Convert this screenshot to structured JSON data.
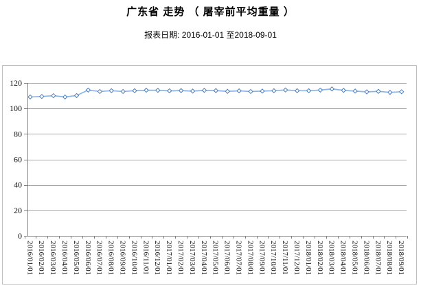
{
  "header": {
    "title": "广东省 走势 （ 屠宰前平均重量 ）",
    "subtitle": "报表日期: 2016-01-01 至2018-09-01"
  },
  "colors": {
    "series_line": "#8EB4E3",
    "marker_stroke": "#4A7EBB",
    "marker_fill": "#FFFFFF",
    "gridline": "#A6A6A6",
    "axis": "#808080",
    "outer_border": "#BFBFBF",
    "label_text": "#111111"
  },
  "chart_data": {
    "type": "line",
    "title": "广东省 走势 （ 屠宰前平均重量 ）",
    "subtitle": "报表日期: 2016-01-01 至2018-09-01",
    "xlabel": "",
    "ylabel": "",
    "legend": "none",
    "grid": "horizontal",
    "marker": "hollow-diamond",
    "ylim": [
      0,
      120
    ],
    "yticks": [
      0,
      20,
      40,
      60,
      80,
      100,
      120
    ],
    "categories": [
      "2016/01/01",
      "2016/02/01",
      "2016/03/01",
      "2016/04/01",
      "2016/05/01",
      "2016/06/01",
      "2016/07/01",
      "2016/08/01",
      "2016/09/01",
      "2016/10/01",
      "2016/11/01",
      "2016/12/01",
      "2017/01/01",
      "2017/02/01",
      "2017/03/01",
      "2017/04/01",
      "2017/05/01",
      "2017/06/01",
      "2017/07/01",
      "2017/08/01",
      "2017/09/01",
      "2017/10/01",
      "2017/11/01",
      "2017/12/01",
      "2018/01/01",
      "2018/02/01",
      "2018/03/01",
      "2018/04/01",
      "2018/05/01",
      "2018/06/01",
      "2018/07/01",
      "2018/08/01",
      "2018/09/01"
    ],
    "series": [
      {
        "name": "屠宰前平均重量",
        "values": [
          109.0,
          109.4,
          110.0,
          109.0,
          110.1,
          114.4,
          113.3,
          113.9,
          113.3,
          113.9,
          114.3,
          114.2,
          113.8,
          114.0,
          113.6,
          114.2,
          114.0,
          113.4,
          113.8,
          113.3,
          113.6,
          113.9,
          114.5,
          113.9,
          113.9,
          114.4,
          115.3,
          114.2,
          113.6,
          113.0,
          113.4,
          112.6,
          113.1
        ]
      }
    ]
  }
}
